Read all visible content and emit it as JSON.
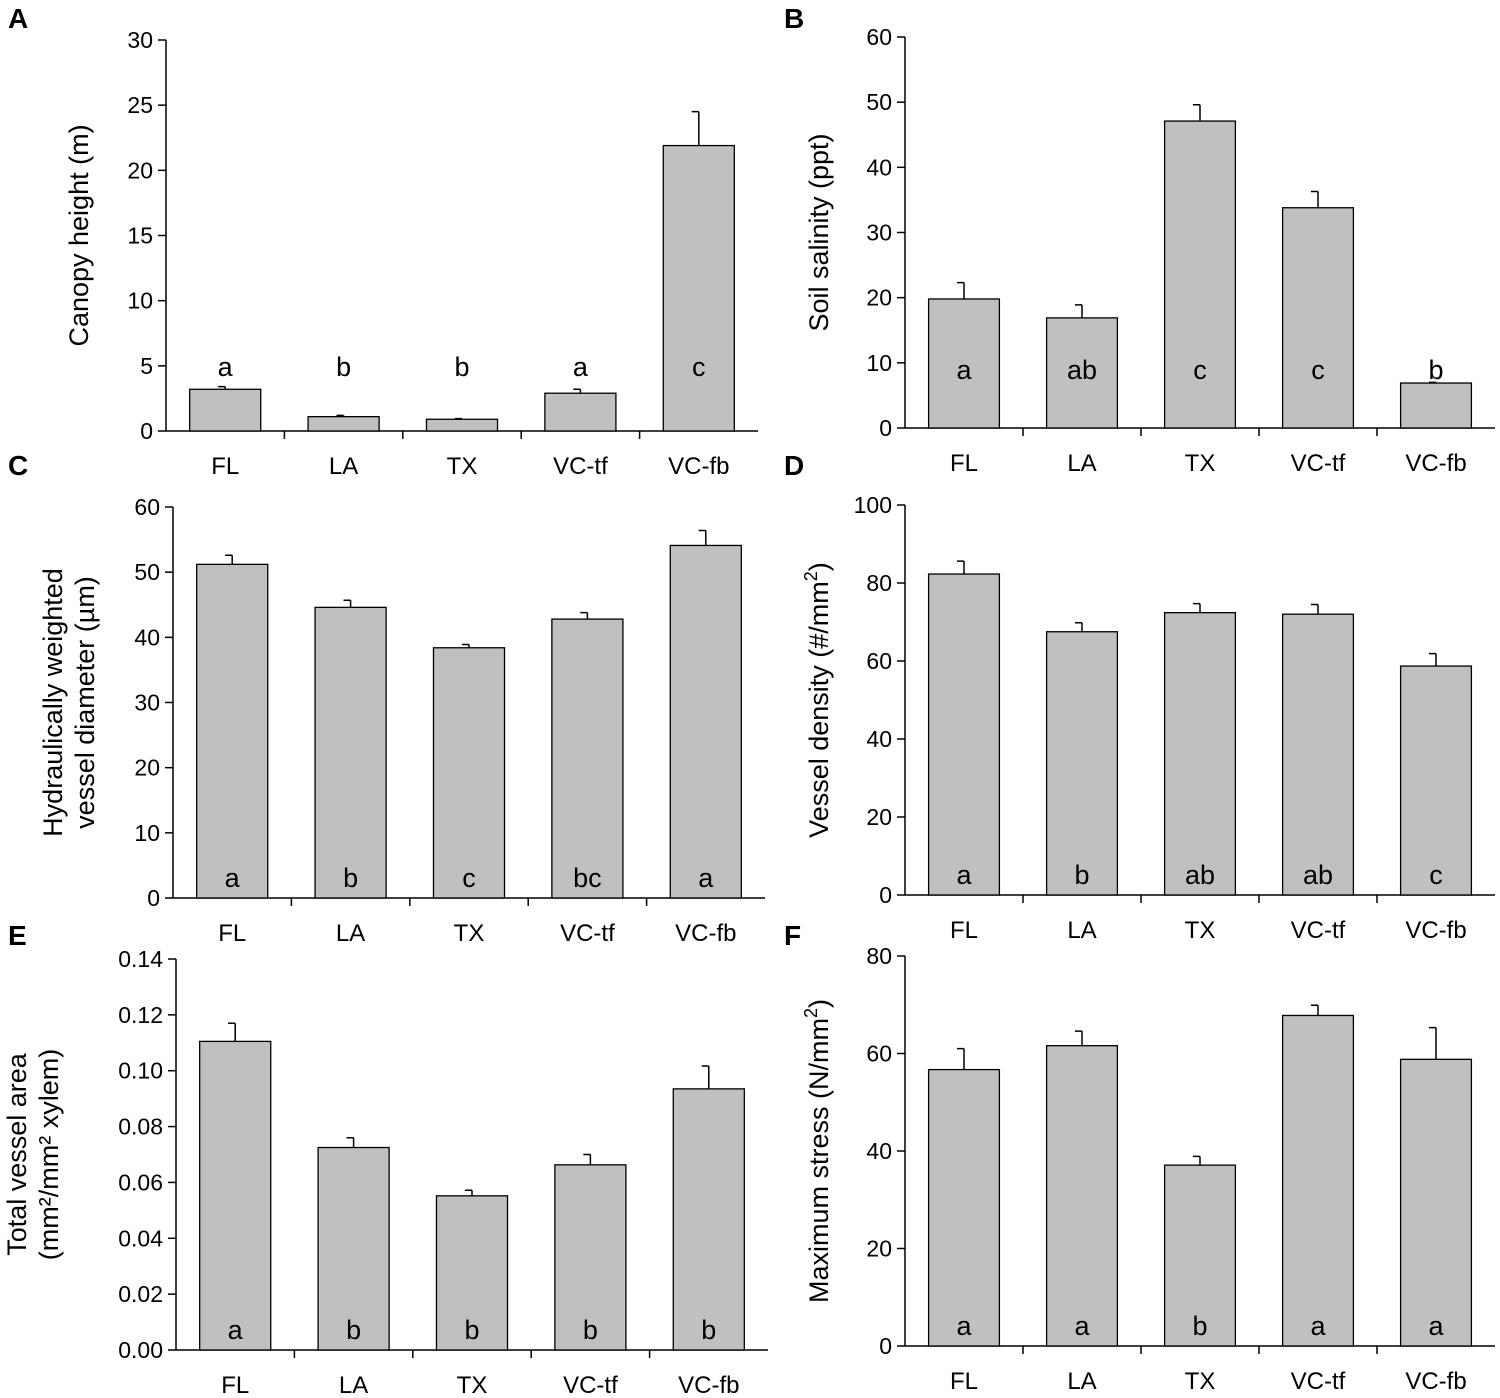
{
  "style": {
    "bar_color": "#c0c0c0",
    "line_color": "#000000"
  },
  "chart_data": [
    {
      "panel": "A",
      "type": "bar",
      "categories": [
        "FL",
        "LA",
        "TX",
        "VC-tf",
        "VC-fb"
      ],
      "values": [
        3.2,
        1.1,
        0.9,
        2.9,
        21.9
      ],
      "errors": [
        0.2,
        0.1,
        0.05,
        0.3,
        2.6
      ],
      "significance": [
        "a",
        "b",
        "b",
        "a",
        "c"
      ],
      "significance_position": "top",
      "ylabel_lines": [
        "Canopy height (m)"
      ],
      "ylim": [
        0,
        30
      ],
      "yticks": [
        "0",
        "5",
        "10",
        "15",
        "20",
        "25",
        "30"
      ]
    },
    {
      "panel": "B",
      "type": "bar",
      "categories": [
        "FL",
        "LA",
        "TX",
        "VC-tf",
        "VC-fb"
      ],
      "values": [
        19.8,
        16.9,
        47.1,
        33.8,
        6.9
      ],
      "errors": [
        2.5,
        2.0,
        2.5,
        2.5,
        0.1
      ],
      "significance": [
        "a",
        "ab",
        "c",
        "c",
        "b"
      ],
      "significance_position": "mid",
      "ylabel_lines": [
        "Soil salinity (ppt)"
      ],
      "ylim": [
        0,
        60
      ],
      "yticks": [
        "0",
        "10",
        "20",
        "30",
        "40",
        "50",
        "60"
      ]
    },
    {
      "panel": "C",
      "type": "bar",
      "categories": [
        "FL",
        "LA",
        "TX",
        "VC-tf",
        "VC-fb"
      ],
      "values": [
        51.2,
        44.6,
        38.4,
        42.8,
        54.1
      ],
      "errors": [
        1.4,
        1.1,
        0.5,
        1.0,
        2.3
      ],
      "significance": [
        "a",
        "b",
        "c",
        "bc",
        "a"
      ],
      "significance_position": "bottom",
      "ylabel_lines": [
        "Hydraulically weighted",
        "vessel diameter (µm)"
      ],
      "ylim": [
        0,
        60
      ],
      "yticks": [
        "0",
        "10",
        "20",
        "30",
        "40",
        "50",
        "60"
      ]
    },
    {
      "panel": "D",
      "type": "bar",
      "categories": [
        "FL",
        "LA",
        "TX",
        "VC-tf",
        "VC-fb"
      ],
      "values": [
        82.3,
        67.5,
        72.4,
        72.0,
        58.7
      ],
      "errors": [
        3.3,
        2.3,
        2.3,
        2.5,
        3.2
      ],
      "significance": [
        "a",
        "b",
        "ab",
        "ab",
        "c"
      ],
      "significance_position": "bottom",
      "ylabel_lines": [
        "Vessel density (#/mm"
      ],
      "ylabel_sup": "2",
      "ylabel_suffix": ")",
      "ylim": [
        0,
        100
      ],
      "yticks": [
        "0",
        "20",
        "40",
        "60",
        "80",
        "100"
      ]
    },
    {
      "panel": "E",
      "type": "bar",
      "categories": [
        "FL",
        "LA",
        "TX",
        "VC-tf",
        "VC-fb"
      ],
      "values": [
        0.1105,
        0.0725,
        0.0552,
        0.0663,
        0.0935
      ],
      "errors": [
        0.0065,
        0.0035,
        0.002,
        0.0037,
        0.0082
      ],
      "significance": [
        "a",
        "b",
        "b",
        "b",
        "b"
      ],
      "significance_position": "bottom",
      "ylabel_lines": [
        "Total vessel area",
        "(mm²/mm² xylem)"
      ],
      "ylim": [
        0,
        0.14
      ],
      "yticks": [
        "0.00",
        "0.02",
        "0.04",
        "0.06",
        "0.08",
        "0.10",
        "0.12",
        "0.14"
      ]
    },
    {
      "panel": "F",
      "type": "bar",
      "categories": [
        "FL",
        "LA",
        "TX",
        "VC-tf",
        "VC-fb"
      ],
      "values": [
        56.7,
        61.6,
        37.1,
        67.8,
        58.8
      ],
      "errors": [
        4.3,
        3.0,
        1.8,
        2.1,
        6.5
      ],
      "significance": [
        "a",
        "a",
        "b",
        "a",
        "a"
      ],
      "significance_position": "bottom",
      "ylabel_lines": [
        "Maximum stress (N/mm"
      ],
      "ylabel_sup": "2",
      "ylabel_suffix": ")",
      "ylim": [
        0,
        80
      ],
      "yticks": [
        "0",
        "20",
        "40",
        "60",
        "80"
      ]
    }
  ]
}
